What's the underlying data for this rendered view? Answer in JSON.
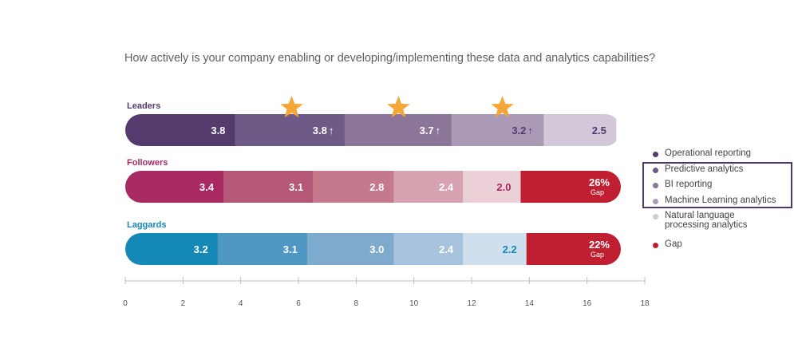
{
  "chart_data": {
    "type": "bar",
    "orientation": "horizontal-stacked",
    "title": "How actively is your company enabling or developing/implementing these data and analytics capabilities?",
    "xlabel": "",
    "ylabel": "",
    "xlim": [
      0,
      18
    ],
    "x_ticks": [
      "0",
      "2",
      "4",
      "6",
      "8",
      "10",
      "12",
      "14",
      "16",
      "18"
    ],
    "grid": false,
    "legend_position": "right",
    "legend": [
      {
        "name": "Operational reporting",
        "color": "#553a6e"
      },
      {
        "name": "Predictive analytics",
        "color": "#6e5a86"
      },
      {
        "name": "BI reporting",
        "color": "#8b7599"
      },
      {
        "name": "Machine Learning analytics",
        "color": "#ab9ab5"
      },
      {
        "name": "Natural language processing analytics",
        "color": "#d2c8da"
      },
      {
        "name": "Gap",
        "color": "#c01f31"
      }
    ],
    "legend_highlight": [
      "Predictive analytics",
      "BI reporting",
      "Machine Learning analytics"
    ],
    "categories": [
      "Leaders",
      "Followers",
      "Laggards"
    ],
    "category_colors": [
      "#553a6e",
      "#a82a62",
      "#1489b6"
    ],
    "series": [
      {
        "name": "Operational reporting",
        "values": [
          3.8,
          3.4,
          3.2
        ],
        "colors": [
          "#553a6e",
          "#a82a62",
          "#1489b6"
        ],
        "label_colors": [
          "#ffffff",
          "#ffffff",
          "#ffffff"
        ]
      },
      {
        "name": "Predictive analytics",
        "values": [
          3.8,
          3.1,
          3.1
        ],
        "colors": [
          "#6e5a86",
          "#b55776",
          "#5098c4"
        ],
        "label_colors": [
          "#ffffff",
          "#ffffff",
          "#ffffff"
        ],
        "leader_marks": "↑"
      },
      {
        "name": "BI reporting",
        "values": [
          3.7,
          2.8,
          3.0
        ],
        "colors": [
          "#8b7599",
          "#c5798d",
          "#7eaace"
        ],
        "label_colors": [
          "#ffffff",
          "#ffffff",
          "#ffffff"
        ],
        "leader_marks": "↑"
      },
      {
        "name": "Machine Learning analytics",
        "values": [
          3.2,
          2.4,
          2.4
        ],
        "colors": [
          "#ab9ab5",
          "#d8a3b1",
          "#a8c3de"
        ],
        "label_colors": [
          "#553a6e",
          "#ffffff",
          "#ffffff"
        ],
        "leader_marks": "↑"
      },
      {
        "name": "Natural language processing analytics",
        "values": [
          2.5,
          2.0,
          2.2
        ],
        "colors": [
          "#d2c8da",
          "#ebd0d7",
          "#cfdfee"
        ],
        "label_colors": [
          "#553a6e",
          "#a82a62",
          "#1489b6"
        ]
      },
      {
        "name": "Gap",
        "values": [
          null,
          3.5,
          3.3
        ],
        "colors": [
          "#c01f31",
          "#c01f31",
          "#c01f31"
        ],
        "labels": [
          "",
          "26%",
          "22%"
        ],
        "sublabel": "Gap",
        "label_colors": [
          "#ffffff",
          "#ffffff",
          "#ffffff"
        ]
      }
    ],
    "annotations": [
      {
        "type": "star",
        "row": "Leaders",
        "x": 5.6,
        "color": "#f4a636"
      },
      {
        "type": "star",
        "row": "Leaders",
        "x": 9.3,
        "color": "#f4a636"
      },
      {
        "type": "star",
        "row": "Leaders",
        "x": 12.9,
        "color": "#f4a636"
      }
    ]
  }
}
